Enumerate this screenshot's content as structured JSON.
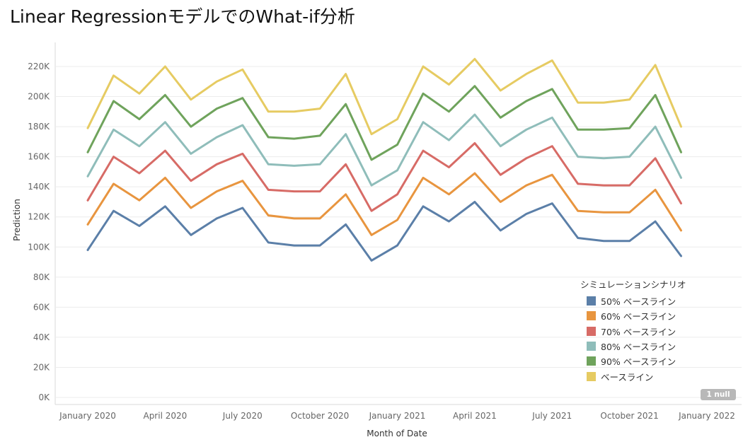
{
  "title": "Linear RegressionモデルでのWhat-if分析",
  "null_badge": "1 null",
  "chart_data": {
    "type": "line",
    "xlabel": "Month of Date",
    "ylabel": "Prediction",
    "ylim": [
      0,
      230000
    ],
    "y_ticks": [
      0,
      20000,
      40000,
      60000,
      80000,
      100000,
      120000,
      140000,
      160000,
      180000,
      200000,
      220000
    ],
    "y_tick_labels": [
      "0K",
      "20K",
      "40K",
      "60K",
      "80K",
      "100K",
      "120K",
      "140K",
      "160K",
      "180K",
      "200K",
      "220K"
    ],
    "x_tick_labels": [
      {
        "label": "January 2020",
        "month": 0
      },
      {
        "label": "April 2020",
        "month": 3
      },
      {
        "label": "July 2020",
        "month": 6
      },
      {
        "label": "October 2020",
        "month": 9
      },
      {
        "label": "January 2021",
        "month": 12
      },
      {
        "label": "April 2021",
        "month": 15
      },
      {
        "label": "July 2021",
        "month": 18
      },
      {
        "label": "October 2021",
        "month": 21
      },
      {
        "label": "January 2022",
        "month": 24
      }
    ],
    "x": [
      "2020-01",
      "2020-02",
      "2020-03",
      "2020-04",
      "2020-05",
      "2020-06",
      "2020-07",
      "2020-08",
      "2020-09",
      "2020-10",
      "2020-11",
      "2020-12",
      "2021-01",
      "2021-02",
      "2021-03",
      "2021-04",
      "2021-05",
      "2021-06",
      "2021-07",
      "2021-08",
      "2021-09",
      "2021-10",
      "2021-11",
      "2021-12",
      "2022-01"
    ],
    "legend_title": "シミュレーションシナリオ",
    "legend_position": "bottom-right",
    "grid": true,
    "series": [
      {
        "name": "50% ベースライン",
        "color": "#5b7fa8",
        "values": [
          98000,
          124000,
          114000,
          127000,
          108000,
          119000,
          126000,
          103000,
          101000,
          101000,
          115000,
          91000,
          101000,
          127000,
          117000,
          130000,
          111000,
          122000,
          129000,
          106000,
          104000,
          104000,
          117000,
          94000,
          null
        ]
      },
      {
        "name": "60% ベースライン",
        "color": "#e8953f",
        "values": [
          115000,
          142000,
          131000,
          146000,
          126000,
          137000,
          144000,
          121000,
          119000,
          119000,
          135000,
          108000,
          118000,
          146000,
          135000,
          149000,
          130000,
          141000,
          148000,
          124000,
          123000,
          123000,
          138000,
          111000,
          null
        ]
      },
      {
        "name": "70% ベースライン",
        "color": "#d76b66",
        "values": [
          131000,
          160000,
          149000,
          164000,
          144000,
          155000,
          162000,
          138000,
          137000,
          137000,
          155000,
          124000,
          135000,
          164000,
          153000,
          169000,
          148000,
          159000,
          167000,
          142000,
          141000,
          141000,
          159000,
          129000,
          null
        ]
      },
      {
        "name": "80% ベースライン",
        "color": "#8fbdba",
        "values": [
          147000,
          178000,
          167000,
          183000,
          162000,
          173000,
          181000,
          155000,
          154000,
          155000,
          175000,
          141000,
          151000,
          183000,
          171000,
          188000,
          167000,
          178000,
          186000,
          160000,
          159000,
          160000,
          180000,
          146000,
          null
        ]
      },
      {
        "name": "90% ベースライン",
        "color": "#6fa35c",
        "values": [
          163000,
          197000,
          185000,
          201000,
          180000,
          192000,
          199000,
          173000,
          172000,
          174000,
          195000,
          158000,
          168000,
          202000,
          190000,
          207000,
          186000,
          197000,
          205000,
          178000,
          178000,
          179000,
          201000,
          163000,
          null
        ]
      },
      {
        "name": "ベースライン",
        "color": "#e6cb62",
        "values": [
          179000,
          214000,
          202000,
          220000,
          198000,
          210000,
          218000,
          190000,
          190000,
          192000,
          215000,
          175000,
          185000,
          220000,
          208000,
          225000,
          204000,
          215000,
          224000,
          196000,
          196000,
          198000,
          221000,
          180000,
          null
        ]
      }
    ]
  }
}
